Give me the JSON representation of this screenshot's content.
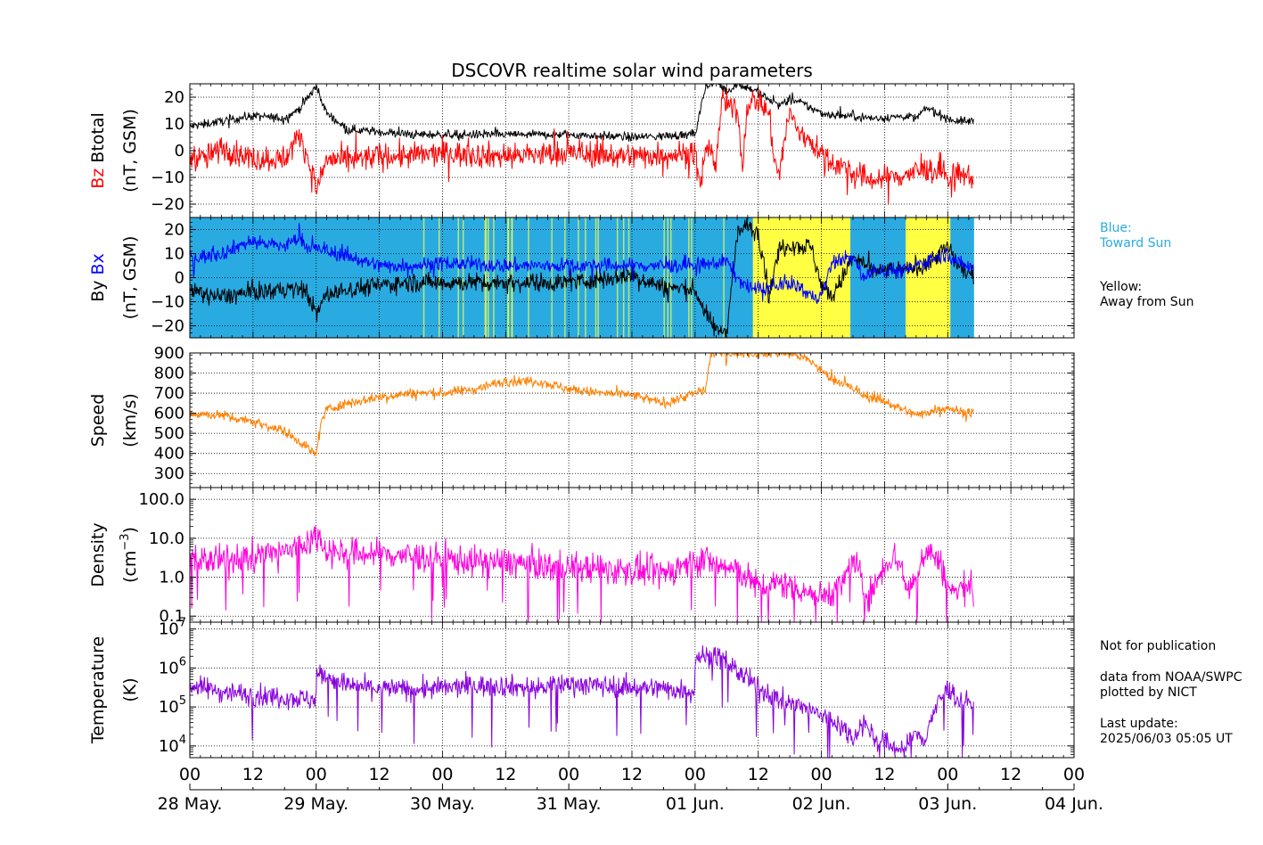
{
  "title": "DSCOVR realtime solar wind parameters",
  "legend": {
    "blue_label": "Blue:",
    "blue_text": "Toward Sun",
    "yellow_label": "Yellow:",
    "yellow_text": "Away from Sun"
  },
  "notes": {
    "not_for_publication": "Not for publication",
    "data_from": "data from NOAA/SWPC",
    "plotted_by": "plotted by NICT",
    "last_update_label": "Last update:",
    "last_update_value": "2025/06/03 05:05 UT"
  },
  "x_axis": {
    "hours_range": [
      0,
      168
    ],
    "tick_hours": [
      0,
      12,
      24,
      36,
      48,
      60,
      72,
      84,
      96,
      108,
      120,
      132,
      144,
      156,
      168
    ],
    "tick_labels": [
      "00",
      "12",
      "00",
      "12",
      "00",
      "12",
      "00",
      "12",
      "00",
      "12",
      "00",
      "12",
      "00",
      "12",
      "00"
    ],
    "date_hours": [
      0,
      24,
      48,
      72,
      96,
      120,
      144,
      168
    ],
    "date_labels": [
      "28 May.",
      "29 May.",
      "30 May.",
      "31 May.",
      "01 Jun.",
      "02 Jun.",
      "03 Jun.",
      "04 Jun."
    ],
    "data_end_hour": 149
  },
  "colors": {
    "btotal": "#000000",
    "bz": "#ff0000",
    "by": "#000000",
    "bx": "#0000ff",
    "speed": "#ff8000",
    "density": "#ff00dd",
    "temperature": "#8800dd",
    "toward": "#29abe2",
    "away": "#ffff44",
    "grid": "#000000"
  },
  "chart_data": [
    {
      "type": "line",
      "panel": "magnetic-field-total",
      "ylabel_parts": [
        "Bz",
        "Btotal",
        "(nT, GSM)"
      ],
      "ylim": [
        -25,
        25
      ],
      "yticks": [
        -20,
        -10,
        0,
        10,
        20
      ],
      "ytick_labels": [
        "−20",
        "−10",
        "0",
        "10",
        "20"
      ],
      "series": [
        {
          "name": "Btotal",
          "color": "#000000",
          "x": [
            0,
            6,
            12,
            18,
            21,
            24,
            26,
            30,
            36,
            42,
            48,
            60,
            72,
            84,
            96,
            98,
            100,
            102,
            104,
            108,
            110,
            112,
            114,
            116,
            118,
            120,
            124,
            126,
            130,
            136,
            138,
            140,
            144,
            146,
            149
          ],
          "y": [
            9,
            11,
            13,
            12,
            16,
            24,
            14,
            8,
            7,
            6,
            6,
            6,
            6,
            5,
            6,
            24,
            26,
            22,
            25,
            22,
            19,
            17,
            19,
            18,
            16,
            14,
            13,
            13,
            12,
            13,
            12,
            16,
            12,
            11,
            11
          ],
          "noise": 1.2
        },
        {
          "name": "Bz",
          "color": "#ff0000",
          "x": [
            0,
            3,
            6,
            12,
            18,
            21,
            22,
            24,
            26,
            30,
            36,
            42,
            48,
            60,
            72,
            84,
            96,
            97,
            98,
            100,
            101,
            102,
            104,
            105,
            106,
            108,
            110,
            111,
            112,
            113,
            114,
            116,
            118,
            120,
            122,
            124,
            126,
            130,
            136,
            140,
            143,
            144,
            146,
            149
          ],
          "y": [
            -2,
            -3,
            1,
            -3,
            -3,
            6,
            0,
            -15,
            -3,
            -4,
            -2,
            -2,
            -1,
            -2,
            -1,
            -2,
            -1,
            -15,
            3,
            -5,
            18,
            17,
            15,
            -5,
            18,
            19,
            14,
            -2,
            -10,
            5,
            14,
            6,
            4,
            -2,
            -4,
            -6,
            -9,
            -11,
            -9,
            -7,
            -8,
            -11,
            -9,
            -10
          ],
          "noise": 3.5
        }
      ]
    },
    {
      "type": "line",
      "panel": "magnetic-field-components",
      "ylabel_parts": [
        "By",
        "Bx",
        "(nT, GSM)"
      ],
      "ylim": [
        -25,
        25
      ],
      "yticks": [
        -20,
        -10,
        0,
        10,
        20
      ],
      "ytick_labels": [
        "−20",
        "−10",
        "0",
        "10",
        "20"
      ],
      "sector_bands": [
        {
          "start": 0,
          "end": 107,
          "sector": "toward"
        },
        {
          "start": 107,
          "end": 125.5,
          "sector": "away"
        },
        {
          "start": 125.5,
          "end": 136,
          "sector": "toward"
        },
        {
          "start": 136,
          "end": 144.5,
          "sector": "away"
        },
        {
          "start": 144.5,
          "end": 149,
          "sector": "toward"
        }
      ],
      "series": [
        {
          "name": "By",
          "color": "#000000",
          "x": [
            0,
            6,
            12,
            18,
            22,
            24,
            26,
            30,
            36,
            42,
            48,
            60,
            72,
            84,
            90,
            96,
            98,
            100,
            102,
            104,
            106,
            108,
            109,
            110,
            112,
            114,
            116,
            118,
            120,
            122,
            124,
            126,
            128,
            130,
            132,
            136,
            140,
            144,
            146,
            149
          ],
          "y": [
            -6,
            -8,
            -6,
            -5,
            -5,
            -15,
            -7,
            -5,
            -3,
            -2,
            -2,
            -2,
            -2,
            1,
            -4,
            -5,
            -15,
            -22,
            -22,
            18,
            22,
            18,
            8,
            -8,
            12,
            14,
            13,
            13,
            -3,
            -8,
            0,
            8,
            6,
            2,
            3,
            3,
            6,
            13,
            5,
            0
          ],
          "noise": 2.8
        },
        {
          "name": "Bx",
          "color": "#0000ff",
          "x": [
            0,
            6,
            10,
            12,
            18,
            21,
            22,
            24,
            26,
            30,
            36,
            42,
            48,
            60,
            72,
            84,
            96,
            100,
            102,
            104,
            106,
            108,
            110,
            112,
            114,
            116,
            118,
            120,
            122,
            124,
            126,
            128,
            130,
            132,
            136,
            140,
            144,
            146,
            149
          ],
          "y": [
            8,
            10,
            14,
            15,
            13,
            17,
            13,
            12,
            11,
            9,
            5,
            5,
            6,
            5,
            5,
            5,
            5,
            6,
            7,
            0,
            -4,
            -5,
            -4,
            -4,
            -2,
            -4,
            -8,
            -8,
            6,
            8,
            8,
            0,
            3,
            3,
            3,
            7,
            10,
            6,
            4
          ],
          "noise": 2.2
        }
      ]
    },
    {
      "type": "line",
      "panel": "speed",
      "ylabel_parts": [
        "Speed",
        "(km/s)"
      ],
      "ylim": [
        230,
        900
      ],
      "yticks": [
        300,
        400,
        500,
        600,
        700,
        800,
        900
      ],
      "ytick_labels": [
        "300",
        "400",
        "500",
        "600",
        "700",
        "800",
        "900"
      ],
      "series": [
        {
          "name": "Speed",
          "color": "#ff8000",
          "x": [
            0,
            6,
            12,
            18,
            22,
            24,
            25,
            26,
            30,
            36,
            42,
            48,
            54,
            60,
            66,
            72,
            78,
            84,
            90,
            96,
            98,
            99,
            100,
            114,
            116,
            118,
            120,
            122,
            124,
            126,
            128,
            132,
            138,
            142,
            144,
            146,
            149
          ],
          "y": [
            600,
            590,
            560,
            510,
            440,
            390,
            560,
            620,
            650,
            680,
            700,
            700,
            720,
            760,
            760,
            720,
            700,
            690,
            650,
            700,
            720,
            900,
            900,
            900,
            880,
            860,
            810,
            770,
            750,
            720,
            690,
            660,
            590,
            620,
            630,
            610,
            600
          ],
          "noise": 18
        }
      ]
    },
    {
      "type": "line",
      "panel": "density",
      "ylabel_parts": [
        "Density",
        "(cm",
        "−3",
        ")"
      ],
      "yscale": "log",
      "ylim": [
        0.07,
        200
      ],
      "yticks": [
        0.1,
        1,
        10,
        100
      ],
      "ytick_labels": [
        "0.1",
        "1.0",
        "10.0",
        "100.0"
      ],
      "series": [
        {
          "name": "Density",
          "color": "#ff00dd",
          "x": [
            0,
            6,
            12,
            18,
            22,
            24,
            26,
            30,
            36,
            42,
            48,
            54,
            60,
            66,
            72,
            78,
            84,
            90,
            96,
            98,
            100,
            104,
            108,
            112,
            116,
            120,
            124,
            126,
            128,
            130,
            134,
            136,
            138,
            140,
            144,
            146,
            148,
            149
          ],
          "y": [
            3,
            2.5,
            3.5,
            4.5,
            7,
            12,
            5,
            4,
            4,
            3.5,
            3,
            2.5,
            2.5,
            2,
            1.8,
            1.6,
            1.5,
            1.2,
            2.5,
            3,
            2,
            1.5,
            0.5,
            0.7,
            0.5,
            0.3,
            0.6,
            2.5,
            0.4,
            0.4,
            3.5,
            0.5,
            0.8,
            5,
            0.5,
            0.4,
            0.7,
            0.3
          ],
          "noise": 0.28
        }
      ]
    },
    {
      "type": "line",
      "panel": "temperature",
      "ylabel_parts": [
        "Temperature",
        "(K)"
      ],
      "yscale": "log",
      "ylim": [
        5000,
        15000000
      ],
      "yticks": [
        10000,
        100000,
        1000000,
        10000000
      ],
      "ytick_labels": [
        "10",
        "10",
        "10",
        "10"
      ],
      "ytick_exponents": [
        "4",
        "5",
        "6",
        "7"
      ],
      "series": [
        {
          "name": "Temperature",
          "color": "#8800dd",
          "x": [
            0,
            6,
            12,
            18,
            23.9,
            24.1,
            26,
            30,
            36,
            42,
            48,
            54,
            60,
            66,
            72,
            78,
            84,
            90,
            95.9,
            96.1,
            100,
            102,
            104,
            106,
            108,
            110,
            114,
            118,
            120,
            124,
            126,
            128,
            130,
            134,
            136,
            138,
            140,
            142,
            144,
            146,
            149
          ],
          "y": [
            350000,
            250000,
            200000,
            180000,
            150000,
            700000,
            600000,
            350000,
            300000,
            280000,
            300000,
            350000,
            350000,
            300000,
            400000,
            350000,
            320000,
            300000,
            250000,
            2000000,
            2000000,
            1500000,
            800000,
            500000,
            300000,
            200000,
            120000,
            80000,
            60000,
            30000,
            15000,
            40000,
            15000,
            9000,
            8000,
            20000,
            15000,
            100000,
            300000,
            150000,
            120000
          ],
          "noise": 0.2
        }
      ]
    }
  ]
}
